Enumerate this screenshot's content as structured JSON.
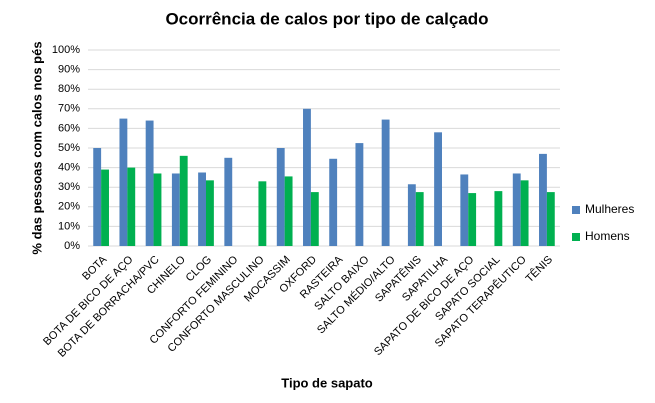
{
  "chart_data": {
    "type": "bar",
    "title": "Ocorrência de calos por tipo de calçado",
    "x_label": "Tipo de sapato",
    "y_label": "% das pessoas com calos nos pés",
    "categories": [
      "BOTA",
      "BOTA DE BICO DE AÇO",
      "BOTA DE BORRACHA/PVC",
      "CHINELO",
      "CLOG",
      "CONFORTO FEMININO",
      "CONFORTO MASCULINO",
      "MOCASSIM",
      "OXFORD",
      "RASTEIRA",
      "SALTO BAIXO",
      "SALTO MÉDIO/ALTO",
      "SAPATÊNIS",
      "SAPATILHA",
      "SAPATO DE BICO DE AÇO",
      "SAPATO SOCIAL",
      "SAPATO TERAPÊUTICO",
      "TÊNIS"
    ],
    "series": [
      {
        "name": "Mulheres",
        "color": "#4f81bd",
        "values": [
          50,
          65,
          64,
          37,
          37.5,
          45,
          null,
          50,
          70,
          44.5,
          52.5,
          64.5,
          31.5,
          58,
          36.5,
          null,
          37,
          47
        ]
      },
      {
        "name": "Homens",
        "color": "#00b050",
        "values": [
          39,
          40,
          37,
          46,
          33.5,
          null,
          33,
          35.5,
          27.5,
          null,
          null,
          null,
          27.5,
          null,
          27,
          28,
          33.5,
          27.5
        ]
      }
    ],
    "ylim": [
      0,
      100
    ],
    "yticks": [
      {
        "value": 0,
        "label": "0%"
      },
      {
        "value": 10,
        "label": "10%"
      },
      {
        "value": 20,
        "label": "20%"
      },
      {
        "value": 30,
        "label": "30%"
      },
      {
        "value": 40,
        "label": "40%"
      },
      {
        "value": 50,
        "label": "50%"
      },
      {
        "value": 60,
        "label": "60%"
      },
      {
        "value": 70,
        "label": "70%"
      },
      {
        "value": 80,
        "label": "80%"
      },
      {
        "value": 90,
        "label": "90%"
      },
      {
        "value": 100,
        "label": "100%"
      }
    ],
    "grid": true,
    "legend": "right"
  }
}
